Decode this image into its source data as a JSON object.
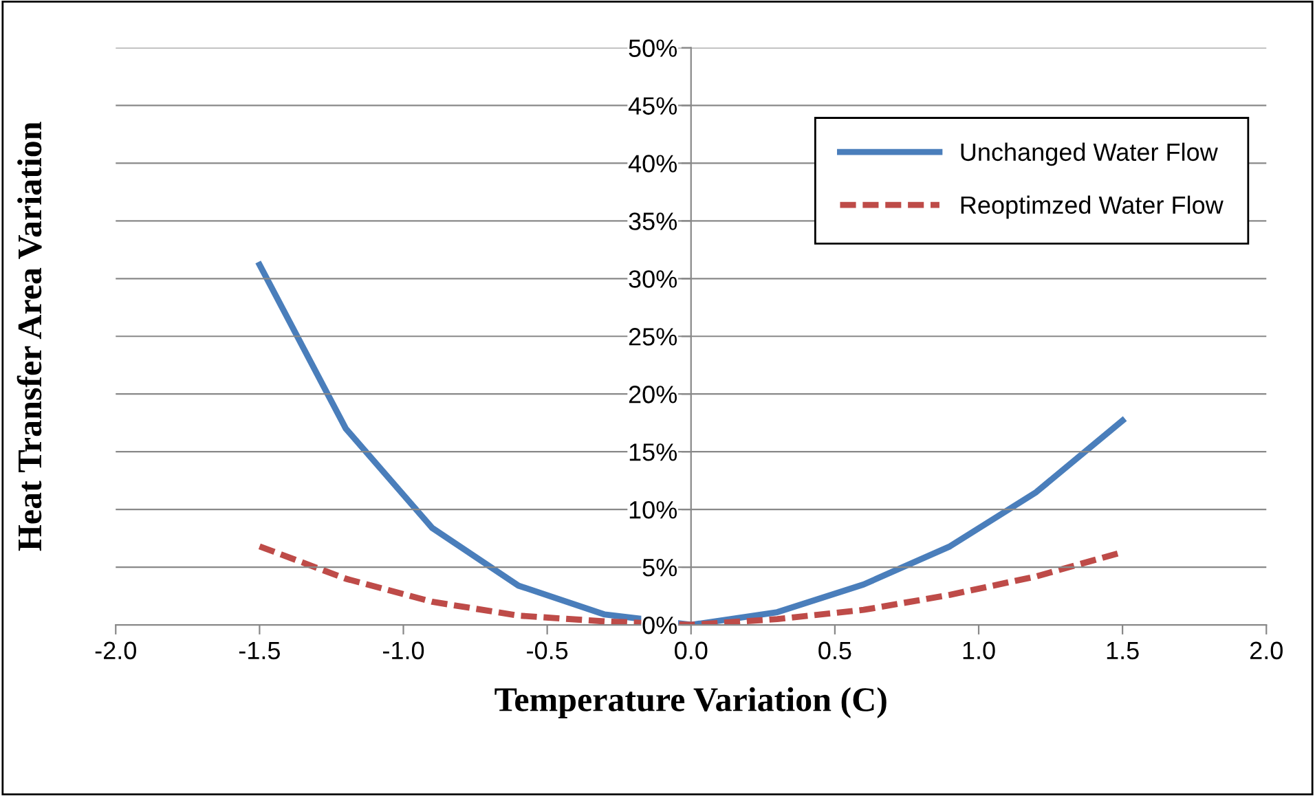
{
  "chart_data": {
    "type": "line",
    "xlabel": "Temperature Variation (C)",
    "ylabel": "Heat Transfer Area Variation",
    "x": [
      -1.5,
      -1.2,
      -0.9,
      -0.6,
      -0.3,
      0.0,
      0.3,
      0.6,
      0.9,
      1.2,
      1.5
    ],
    "series": [
      {
        "name": "Unchanged Water Flow",
        "color": "#4a7ebb",
        "line_style": "solid",
        "values": [
          31.2,
          17.0,
          8.4,
          3.4,
          0.9,
          0.0,
          1.1,
          3.5,
          6.8,
          11.5,
          17.7
        ]
      },
      {
        "name": "Reoptimzed Water Flow",
        "color": "#be4b48",
        "line_style": "dashed",
        "values": [
          6.8,
          4.0,
          2.0,
          0.8,
          0.3,
          0.0,
          0.5,
          1.3,
          2.6,
          4.2,
          6.3
        ]
      }
    ],
    "xlim": [
      -2,
      2
    ],
    "xticks": [
      {
        "value": -2,
        "label": "-2.0"
      },
      {
        "value": -1.5,
        "label": "-1.5"
      },
      {
        "value": -1,
        "label": "-1.0"
      },
      {
        "value": -0.5,
        "label": "-0.5"
      },
      {
        "value": 0,
        "label": "0.0"
      },
      {
        "value": 0.5,
        "label": "0.5"
      },
      {
        "value": 1,
        "label": "1.0"
      },
      {
        "value": 1.5,
        "label": "1.5"
      },
      {
        "value": 2,
        "label": "2.0"
      }
    ],
    "ylim": [
      0,
      50
    ],
    "yticks": [
      {
        "value": 0,
        "label": "0%"
      },
      {
        "value": 5,
        "label": "5%"
      },
      {
        "value": 10,
        "label": "10%"
      },
      {
        "value": 15,
        "label": "15%"
      },
      {
        "value": 20,
        "label": "20%"
      },
      {
        "value": 25,
        "label": "25%"
      },
      {
        "value": 30,
        "label": "30%"
      },
      {
        "value": 35,
        "label": "35%"
      },
      {
        "value": 40,
        "label": "40%"
      },
      {
        "value": 45,
        "label": "45%"
      },
      {
        "value": 50,
        "label": "50%"
      }
    ],
    "grid": "y",
    "legend": "top right",
    "marker": "none"
  }
}
